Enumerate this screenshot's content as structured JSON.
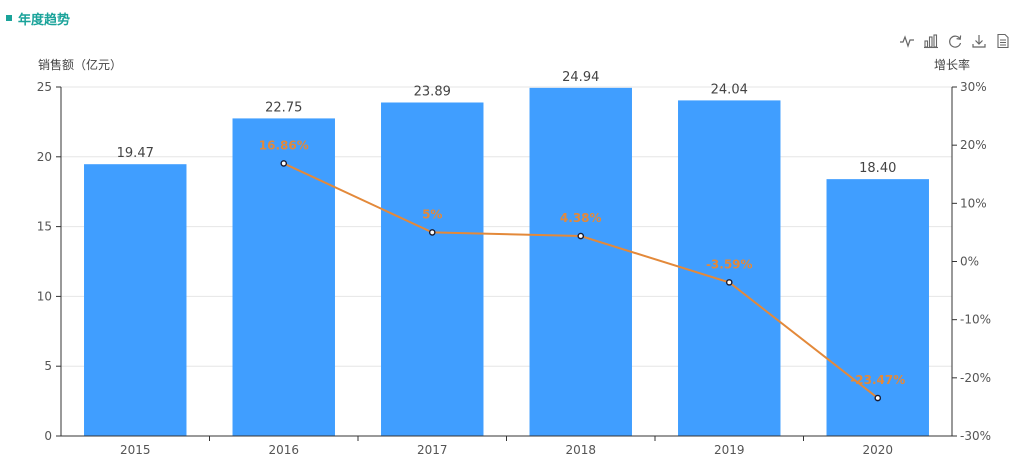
{
  "panel": {
    "title": "年度趋势"
  },
  "toolbar": [
    {
      "name": "line-chart-icon"
    },
    {
      "name": "bar-chart-icon"
    },
    {
      "name": "refresh-icon"
    },
    {
      "name": "download-icon"
    },
    {
      "name": "data-view-icon"
    }
  ],
  "chart_data": {
    "type": "bar",
    "categories": [
      "2015",
      "2016",
      "2017",
      "2018",
      "2019",
      "2020"
    ],
    "series": [
      {
        "type": "bar",
        "values": [
          19.47,
          22.75,
          23.89,
          24.94,
          24.04,
          18.4
        ],
        "labels": [
          "19.47",
          "22.75",
          "23.89",
          "24.94",
          "24.04",
          "18.40"
        ],
        "color": "#409eff"
      },
      {
        "type": "line",
        "values": [
          null,
          16.86,
          5,
          4.38,
          -3.59,
          -23.47
        ],
        "labels": [
          "",
          "16.86%",
          "5%",
          "4.38%",
          "-3.59%",
          "-23.47%"
        ],
        "color": "#e3893a"
      }
    ],
    "ylabel": "销售额（亿元）",
    "y2label": "增长率",
    "ylim": [
      0,
      25
    ],
    "yticks": [
      "0",
      "5",
      "10",
      "15",
      "20",
      "25"
    ],
    "y2lim": [
      -30,
      30
    ],
    "y2ticks": [
      "-30%",
      "-20%",
      "-10%",
      "0%",
      "10%",
      "20%",
      "30%"
    ],
    "grid": true
  }
}
